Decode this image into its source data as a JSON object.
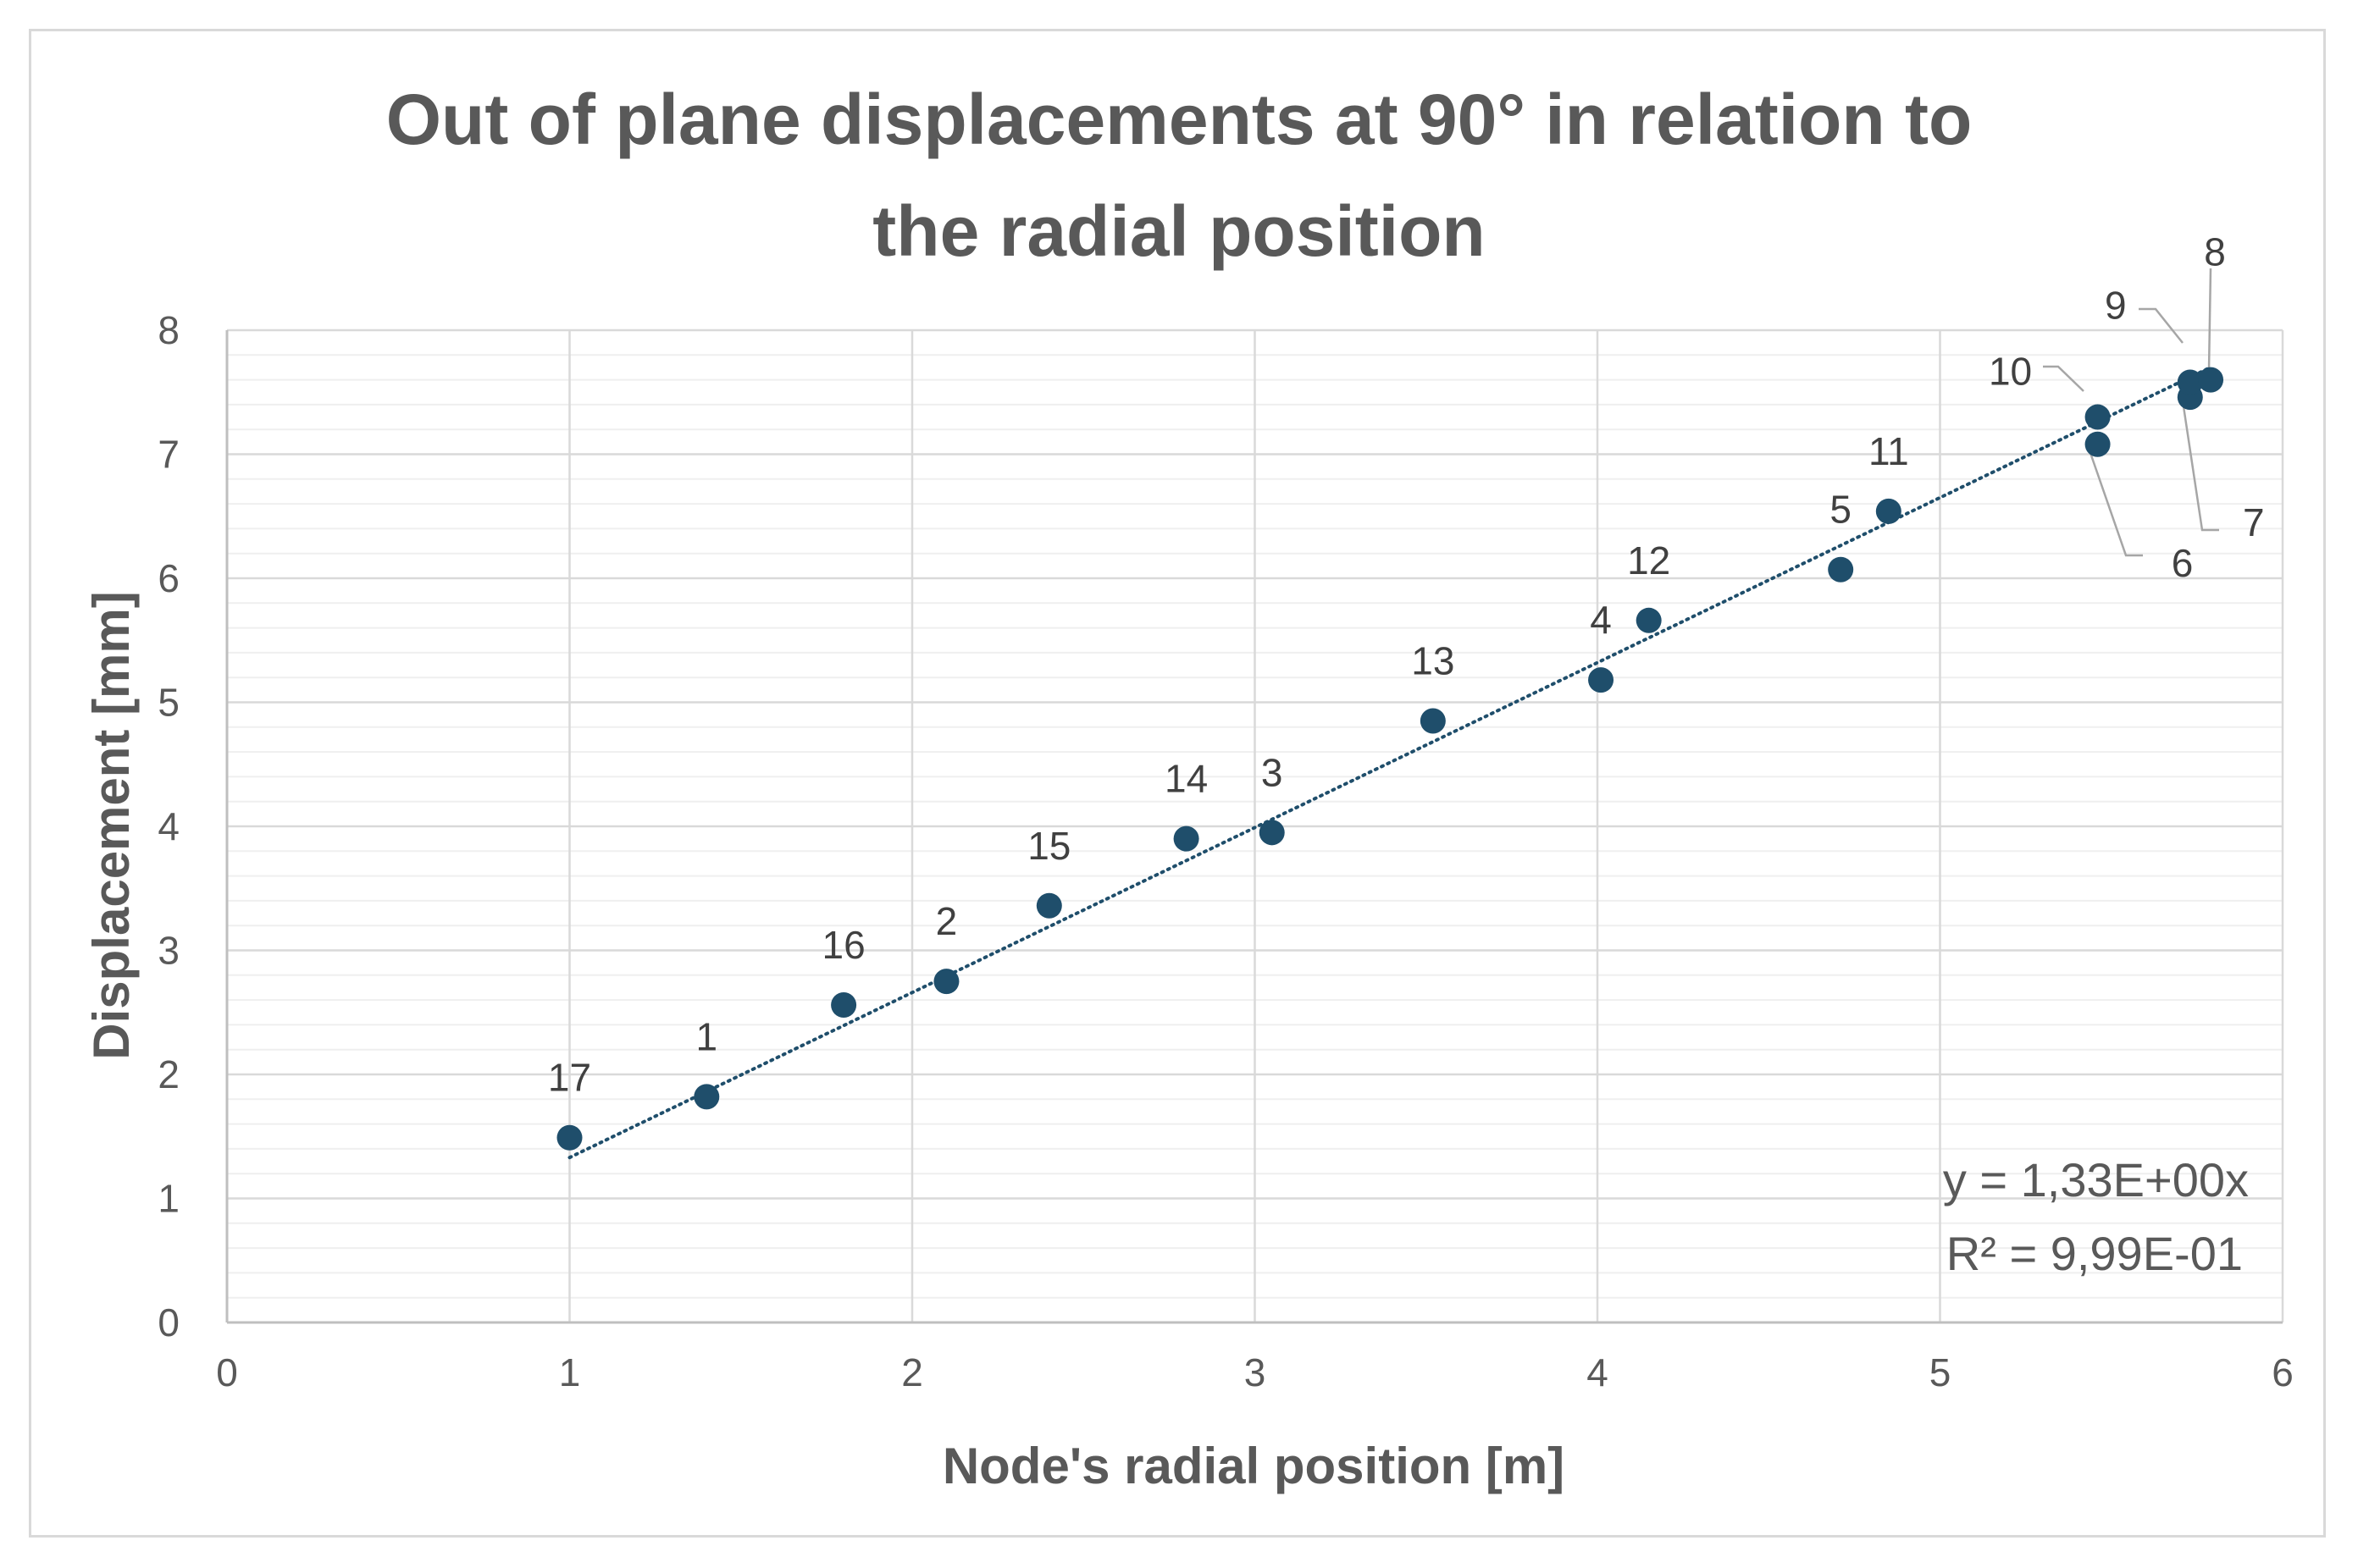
{
  "chart_data": {
    "type": "scatter",
    "title_lines": [
      "Out of plane displacements at 90° in relation to",
      "the radial position"
    ],
    "xlabel": "Node's radial position [m]",
    "ylabel": "Displacement [mm]",
    "xlim": [
      0,
      6
    ],
    "ylim": [
      0,
      8
    ],
    "xticks": [
      "0",
      "1",
      "2",
      "3",
      "4",
      "5",
      "6"
    ],
    "yticks": [
      "0",
      "1",
      "2",
      "3",
      "4",
      "5",
      "6",
      "7",
      "8"
    ],
    "grid": true,
    "marker_color": "#1f4e6b",
    "points": [
      {
        "label": "17",
        "x": 1.0,
        "y": 1.49
      },
      {
        "label": "1",
        "x": 1.4,
        "y": 1.82
      },
      {
        "label": "16",
        "x": 1.8,
        "y": 2.56
      },
      {
        "label": "2",
        "x": 2.1,
        "y": 2.75
      },
      {
        "label": "15",
        "x": 2.4,
        "y": 3.36
      },
      {
        "label": "14",
        "x": 2.8,
        "y": 3.9
      },
      {
        "label": "3",
        "x": 3.05,
        "y": 3.95
      },
      {
        "label": "13",
        "x": 3.52,
        "y": 4.85
      },
      {
        "label": "4",
        "x": 4.01,
        "y": 5.18
      },
      {
        "label": "12",
        "x": 4.15,
        "y": 5.66
      },
      {
        "label": "5",
        "x": 4.71,
        "y": 6.07
      },
      {
        "label": "11",
        "x": 4.85,
        "y": 6.54
      },
      {
        "label": "6",
        "x": 5.46,
        "y": 7.08
      },
      {
        "label": "10",
        "x": 5.46,
        "y": 7.3
      },
      {
        "label": "7",
        "x": 5.73,
        "y": 7.46
      },
      {
        "label": "9",
        "x": 5.73,
        "y": 7.58
      },
      {
        "label": "8",
        "x": 5.79,
        "y": 7.6
      }
    ],
    "trendline": {
      "type": "linear",
      "slope": 1.33,
      "x_range": [
        1.0,
        5.79
      ],
      "style": "dotted",
      "equation_text": "y = 1,33E+00x",
      "r2_text": "R² = 9,99E-01"
    }
  }
}
